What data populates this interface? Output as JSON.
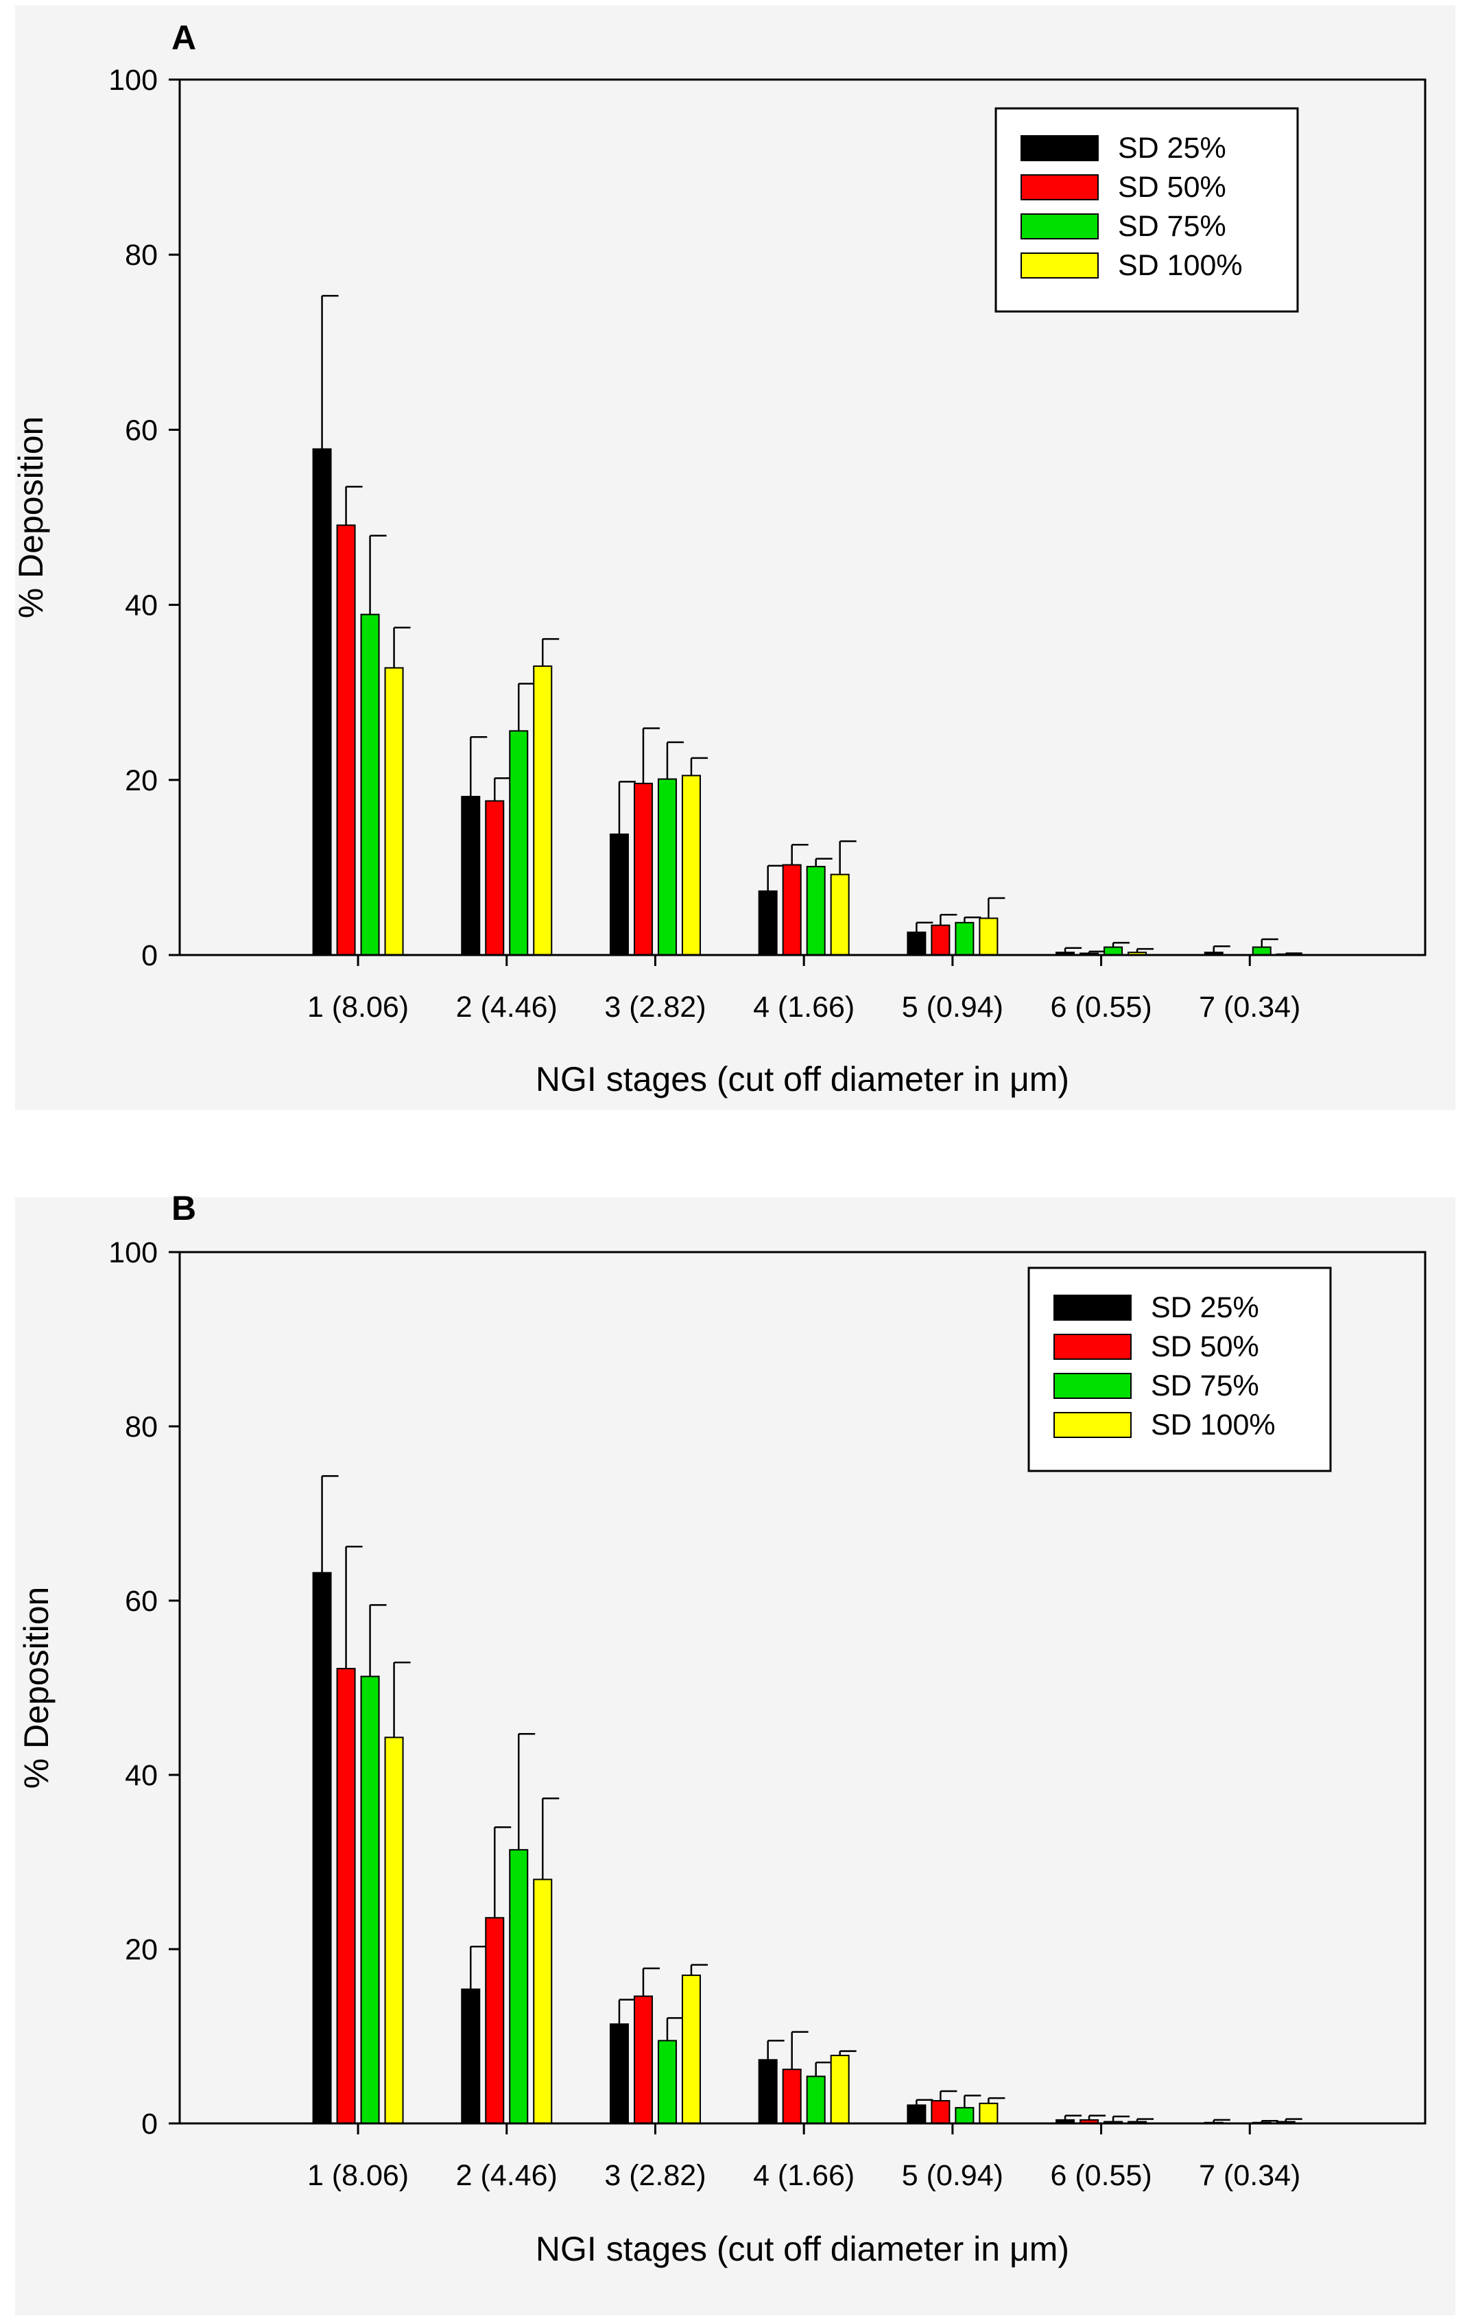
{
  "chart_data": [
    {
      "panel_label": "A",
      "type": "bar",
      "title": "",
      "xlabel": "NGI stages (cut off diameter in μm)",
      "ylabel": "% Deposition",
      "ylim": [
        0,
        100
      ],
      "yticks": [
        0,
        20,
        40,
        60,
        80,
        100
      ],
      "categories": [
        "1 (8.06)",
        "2 (4.46)",
        "3 (2.82)",
        "4 (1.66)",
        "5 (0.94)",
        "6 (0.55)",
        "7 (0.34)"
      ],
      "legend_position": "top-right",
      "error_bars": "upper",
      "series": [
        {
          "name": "SD 25%",
          "color": "#000000",
          "values": [
            57.8,
            18.1,
            13.8,
            7.3,
            2.6,
            0.3,
            0.3
          ],
          "errors": [
            17.5,
            6.8,
            6.0,
            2.9,
            1.1,
            0.5,
            0.7
          ]
        },
        {
          "name": "SD 50%",
          "color": "#ff0000",
          "values": [
            49.1,
            17.6,
            19.6,
            10.3,
            3.4,
            0.2,
            0.0
          ],
          "errors": [
            4.4,
            2.6,
            6.3,
            2.3,
            1.2,
            0.2,
            0.0
          ]
        },
        {
          "name": "SD 75%",
          "color": "#00e000",
          "values": [
            38.9,
            25.6,
            20.1,
            10.1,
            3.7,
            0.9,
            0.9
          ],
          "errors": [
            9.0,
            5.4,
            4.2,
            0.9,
            0.6,
            0.5,
            0.9
          ]
        },
        {
          "name": "SD 100%",
          "color": "#ffff00",
          "values": [
            32.8,
            33.0,
            20.5,
            9.2,
            4.2,
            0.3,
            0.1
          ],
          "errors": [
            4.6,
            3.1,
            2.0,
            3.8,
            2.3,
            0.4,
            0.1
          ]
        }
      ]
    },
    {
      "panel_label": "B",
      "type": "bar",
      "title": "",
      "xlabel": "NGI stages (cut off diameter in μm)",
      "ylabel": "% Deposition",
      "ylim": [
        0,
        100
      ],
      "yticks": [
        0,
        20,
        40,
        60,
        80,
        100
      ],
      "categories": [
        "1 (8.06)",
        "2 (4.46)",
        "3 (2.82)",
        "4 (1.66)",
        "5 (0.94)",
        "6 (0.55)",
        "7 (0.34)"
      ],
      "legend_position": "top-right",
      "error_bars": "upper",
      "series": [
        {
          "name": "SD 25%",
          "color": "#000000",
          "values": [
            63.2,
            15.4,
            11.4,
            7.3,
            2.1,
            0.4,
            0.1
          ],
          "errors": [
            11.1,
            4.9,
            2.8,
            2.2,
            0.6,
            0.5,
            0.3
          ]
        },
        {
          "name": "SD 50%",
          "color": "#ff0000",
          "values": [
            52.2,
            23.6,
            14.6,
            6.2,
            2.6,
            0.4,
            0.0
          ],
          "errors": [
            14.0,
            10.4,
            3.2,
            4.3,
            1.1,
            0.5,
            0.0
          ]
        },
        {
          "name": "SD 75%",
          "color": "#00e000",
          "values": [
            51.3,
            31.4,
            9.5,
            5.4,
            1.8,
            0.2,
            0.1
          ],
          "errors": [
            8.2,
            13.3,
            2.6,
            1.6,
            1.4,
            0.6,
            0.2
          ]
        },
        {
          "name": "SD 100%",
          "color": "#ffff00",
          "values": [
            44.3,
            28.0,
            17.0,
            7.8,
            2.3,
            0.2,
            0.2
          ],
          "errors": [
            8.6,
            9.3,
            1.2,
            0.5,
            0.6,
            0.3,
            0.3
          ]
        }
      ]
    }
  ]
}
